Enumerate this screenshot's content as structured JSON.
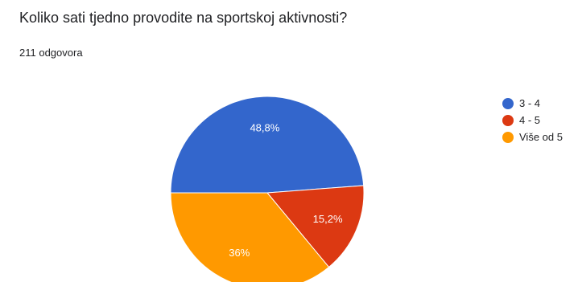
{
  "header": {
    "title": "Koliko sati tjedno provodite na sportskoj aktivnosti?",
    "response_count": "211 odgovora"
  },
  "colors": {
    "series": [
      "#3366cc",
      "#dc3912",
      "#ff9900"
    ]
  },
  "chart_data": {
    "type": "pie",
    "title": "Koliko sati tjedno provodite na sportskoj aktivnosti?",
    "subtitle": "211 odgovora",
    "categories": [
      "3 - 4",
      "4 - 5",
      "Više od 5"
    ],
    "values": [
      48.8,
      15.2,
      36.0
    ],
    "data_labels": [
      "48,8%",
      "15,2%",
      "36%"
    ],
    "legend_position": "right"
  }
}
